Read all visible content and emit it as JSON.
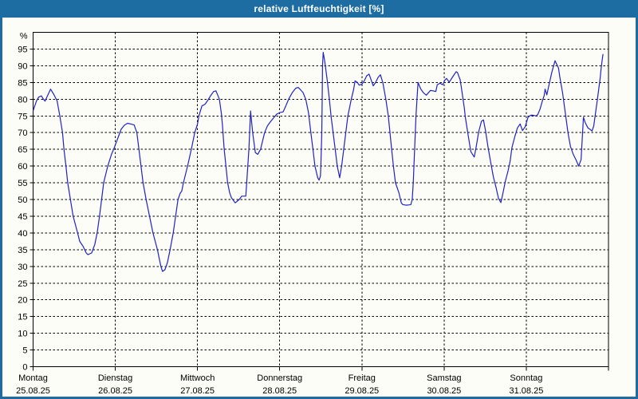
{
  "window": {
    "title": "relative Luftfeuchtigkeit [%]"
  },
  "colors": {
    "title_bar": "#1d6da3",
    "window_border": "#1d6da3",
    "content_bg": "#fbfdf6",
    "line": "#2121c8",
    "grid": "#000000",
    "text": "#000000"
  },
  "chart_data": {
    "type": "line",
    "title": "relative Luftfeuchtigkeit [%]",
    "ylabel": "%",
    "ylim": [
      0,
      100
    ],
    "y_tick_step": 5,
    "y_tick_min": 0,
    "y_tick_max": 95,
    "grid": "dashed",
    "legend_position": "none",
    "x_unit": "hours since Monday 00:00",
    "x_range_hours": [
      0,
      168
    ],
    "days": [
      {
        "label": "Montag",
        "date": "25.08.25"
      },
      {
        "label": "Dienstag",
        "date": "26.08.25"
      },
      {
        "label": "Mittwoch",
        "date": "27.08.25"
      },
      {
        "label": "Donnerstag",
        "date": "28.08.25"
      },
      {
        "label": "Freitag",
        "date": "29.08.25"
      },
      {
        "label": "Samstag",
        "date": "30.08.25"
      },
      {
        "label": "Sonntag",
        "date": "31.08.25"
      }
    ],
    "series": [
      {
        "name": "relative Luftfeuchtigkeit",
        "points": [
          [
            0,
            76.5
          ],
          [
            0.5,
            78
          ],
          [
            1,
            79.5
          ],
          [
            1.6,
            80.6
          ],
          [
            2.4,
            81
          ],
          [
            3,
            80
          ],
          [
            3.5,
            79.4
          ],
          [
            4.2,
            81
          ],
          [
            5.1,
            83
          ],
          [
            6,
            81.5
          ],
          [
            7,
            79.5
          ],
          [
            7.8,
            75
          ],
          [
            8.6,
            70
          ],
          [
            9,
            65
          ],
          [
            9.6,
            60
          ],
          [
            10.1,
            55
          ],
          [
            10.9,
            50
          ],
          [
            11.7,
            45
          ],
          [
            13,
            40
          ],
          [
            13.6,
            37.5
          ],
          [
            14.6,
            36
          ],
          [
            15.5,
            34
          ],
          [
            16,
            33.5
          ],
          [
            17.1,
            34
          ],
          [
            18,
            36.5
          ],
          [
            18.7,
            40
          ],
          [
            19.4,
            45
          ],
          [
            20,
            50
          ],
          [
            20.6,
            55
          ],
          [
            21.8,
            60
          ],
          [
            22.9,
            63.5
          ],
          [
            23.7,
            65.5
          ],
          [
            24.8,
            68.5
          ],
          [
            25.7,
            71
          ],
          [
            26.7,
            72.3
          ],
          [
            27.6,
            72.8
          ],
          [
            28.8,
            72.5
          ],
          [
            29.5,
            72.3
          ],
          [
            30.3,
            70
          ],
          [
            30.9,
            65
          ],
          [
            31.5,
            60
          ],
          [
            32.1,
            55
          ],
          [
            33,
            50
          ],
          [
            34,
            45
          ],
          [
            35,
            40
          ],
          [
            36.3,
            35
          ],
          [
            37.3,
            30
          ],
          [
            37.8,
            28.5
          ],
          [
            38.5,
            29
          ],
          [
            39.2,
            31
          ],
          [
            40,
            35
          ],
          [
            40.9,
            40
          ],
          [
            41.6,
            45
          ],
          [
            42.3,
            50
          ],
          [
            43,
            52
          ],
          [
            43.4,
            52.5
          ],
          [
            43.9,
            55
          ],
          [
            45.1,
            60
          ],
          [
            46.2,
            65
          ],
          [
            47.2,
            70
          ],
          [
            48,
            72.5
          ],
          [
            48.4,
            75
          ],
          [
            49.3,
            78
          ],
          [
            50.2,
            78.5
          ],
          [
            50.9,
            79.5
          ],
          [
            51.8,
            81
          ],
          [
            52.7,
            82.3
          ],
          [
            53.4,
            82.5
          ],
          [
            54.4,
            80
          ],
          [
            55,
            75.5
          ],
          [
            55.3,
            72
          ],
          [
            55.8,
            65
          ],
          [
            56.3,
            60
          ],
          [
            56.8,
            55
          ],
          [
            57.4,
            52
          ],
          [
            57.9,
            50.5
          ],
          [
            59,
            49
          ],
          [
            60.2,
            50
          ],
          [
            60.9,
            51
          ],
          [
            62.1,
            51
          ],
          [
            62.5,
            57
          ],
          [
            63,
            65
          ],
          [
            63.3,
            72
          ],
          [
            63.5,
            76.5
          ],
          [
            64.1,
            70
          ],
          [
            64.9,
            64
          ],
          [
            65.6,
            63.5
          ],
          [
            66.4,
            65
          ],
          [
            67.6,
            70
          ],
          [
            68.4,
            72
          ],
          [
            69.1,
            73
          ],
          [
            69.9,
            74
          ],
          [
            71.1,
            75.5
          ],
          [
            72,
            76
          ],
          [
            73,
            76.2
          ],
          [
            73.8,
            78
          ],
          [
            74.6,
            80
          ],
          [
            75.7,
            82
          ],
          [
            76.7,
            83.3
          ],
          [
            77.4,
            83.5
          ],
          [
            78.1,
            82.8
          ],
          [
            78.8,
            82
          ],
          [
            79.6,
            80
          ],
          [
            80.4,
            76
          ],
          [
            81.1,
            70
          ],
          [
            81.7,
            65
          ],
          [
            82.3,
            60
          ],
          [
            83.1,
            56.5
          ],
          [
            83.5,
            55.8
          ],
          [
            83.9,
            57
          ],
          [
            84,
            60
          ],
          [
            84.3,
            70
          ],
          [
            84.4,
            80
          ],
          [
            84.5,
            90
          ],
          [
            84.7,
            94
          ],
          [
            85.2,
            91
          ],
          [
            85.9,
            85.5
          ],
          [
            86.5,
            80
          ],
          [
            87,
            75
          ],
          [
            87.6,
            70
          ],
          [
            88.2,
            65
          ],
          [
            88.8,
            60
          ],
          [
            89.5,
            56.5
          ],
          [
            90.1,
            60
          ],
          [
            90.7,
            65
          ],
          [
            91.3,
            70
          ],
          [
            91.9,
            75
          ],
          [
            92.9,
            80
          ],
          [
            93.6,
            83
          ],
          [
            94,
            85.5
          ],
          [
            94.7,
            85
          ],
          [
            95.2,
            84.2
          ],
          [
            96,
            84.5
          ],
          [
            96.7,
            85.5
          ],
          [
            97.4,
            87
          ],
          [
            98.1,
            87.5
          ],
          [
            98.8,
            85.5
          ],
          [
            99.3,
            84
          ],
          [
            100,
            85
          ],
          [
            100.7,
            86.5
          ],
          [
            101.4,
            87.3
          ],
          [
            102.1,
            85
          ],
          [
            103,
            80
          ],
          [
            103.7,
            75
          ],
          [
            104.2,
            70
          ],
          [
            104.7,
            65
          ],
          [
            105.2,
            60
          ],
          [
            105.8,
            55
          ],
          [
            106.8,
            52
          ],
          [
            107.5,
            49
          ],
          [
            107.9,
            48.5
          ],
          [
            108.9,
            48.3
          ],
          [
            109.9,
            48.4
          ],
          [
            110.3,
            48.5
          ],
          [
            110.7,
            50
          ],
          [
            111,
            55
          ],
          [
            111.4,
            65
          ],
          [
            111.8,
            75
          ],
          [
            112.2,
            82
          ],
          [
            112.4,
            85
          ],
          [
            112.8,
            84
          ],
          [
            113.2,
            83
          ],
          [
            113.9,
            82
          ],
          [
            114.8,
            81.2
          ],
          [
            116,
            82.6
          ],
          [
            116.8,
            82.5
          ],
          [
            117.6,
            82.3
          ],
          [
            118,
            84.3
          ],
          [
            118.8,
            84.8
          ],
          [
            119.6,
            84.3
          ],
          [
            120.3,
            85.8
          ],
          [
            120.7,
            86.2
          ],
          [
            121.5,
            85.1
          ],
          [
            122.7,
            87
          ],
          [
            123.5,
            88.2
          ],
          [
            123.9,
            88
          ],
          [
            124.7,
            85.8
          ],
          [
            125.1,
            83
          ],
          [
            125.5,
            80.2
          ],
          [
            125.9,
            77.4
          ],
          [
            126.2,
            74.6
          ],
          [
            127,
            69.4
          ],
          [
            127.8,
            64.3
          ],
          [
            128.8,
            62.7
          ],
          [
            129.4,
            65.9
          ],
          [
            130.1,
            70.2
          ],
          [
            130.9,
            73.4
          ],
          [
            131.5,
            73.8
          ],
          [
            132.1,
            70.6
          ],
          [
            132.8,
            65.9
          ],
          [
            133.6,
            61.1
          ],
          [
            134.4,
            56.7
          ],
          [
            135.2,
            53.5
          ],
          [
            135.9,
            50.3
          ],
          [
            136.6,
            49.1
          ],
          [
            137.1,
            51.5
          ],
          [
            137.9,
            55.5
          ],
          [
            138.7,
            58.7
          ],
          [
            139.3,
            61.5
          ],
          [
            139.8,
            65.5
          ],
          [
            140.6,
            68.6
          ],
          [
            141.4,
            71.4
          ],
          [
            142.2,
            72.6
          ],
          [
            142.9,
            70.6
          ],
          [
            143.7,
            71.8
          ],
          [
            144.5,
            74.6
          ],
          [
            145.3,
            75.2
          ],
          [
            146,
            75.2
          ],
          [
            146.9,
            75
          ],
          [
            147.4,
            75.5
          ],
          [
            148,
            77
          ],
          [
            148.8,
            79.8
          ],
          [
            149.2,
            81
          ],
          [
            149.5,
            83
          ],
          [
            150,
            81.3
          ],
          [
            150.7,
            84.6
          ],
          [
            151.5,
            88.2
          ],
          [
            152.4,
            91.5
          ],
          [
            153.4,
            89.3
          ],
          [
            153.8,
            86.6
          ],
          [
            154.6,
            81.8
          ],
          [
            155.4,
            75.8
          ],
          [
            156.2,
            69.8
          ],
          [
            156.9,
            65.9
          ],
          [
            157.7,
            63.5
          ],
          [
            158.5,
            61.9
          ],
          [
            159.3,
            60
          ],
          [
            160,
            61.9
          ],
          [
            160.7,
            74.6
          ],
          [
            161.2,
            73
          ],
          [
            162,
            71.4
          ],
          [
            162.8,
            70.8
          ],
          [
            163.2,
            70.5
          ],
          [
            163.7,
            72
          ],
          [
            164.7,
            79.4
          ],
          [
            165.5,
            85.8
          ],
          [
            165.9,
            89.7
          ],
          [
            166.4,
            93.5
          ]
        ]
      }
    ]
  }
}
